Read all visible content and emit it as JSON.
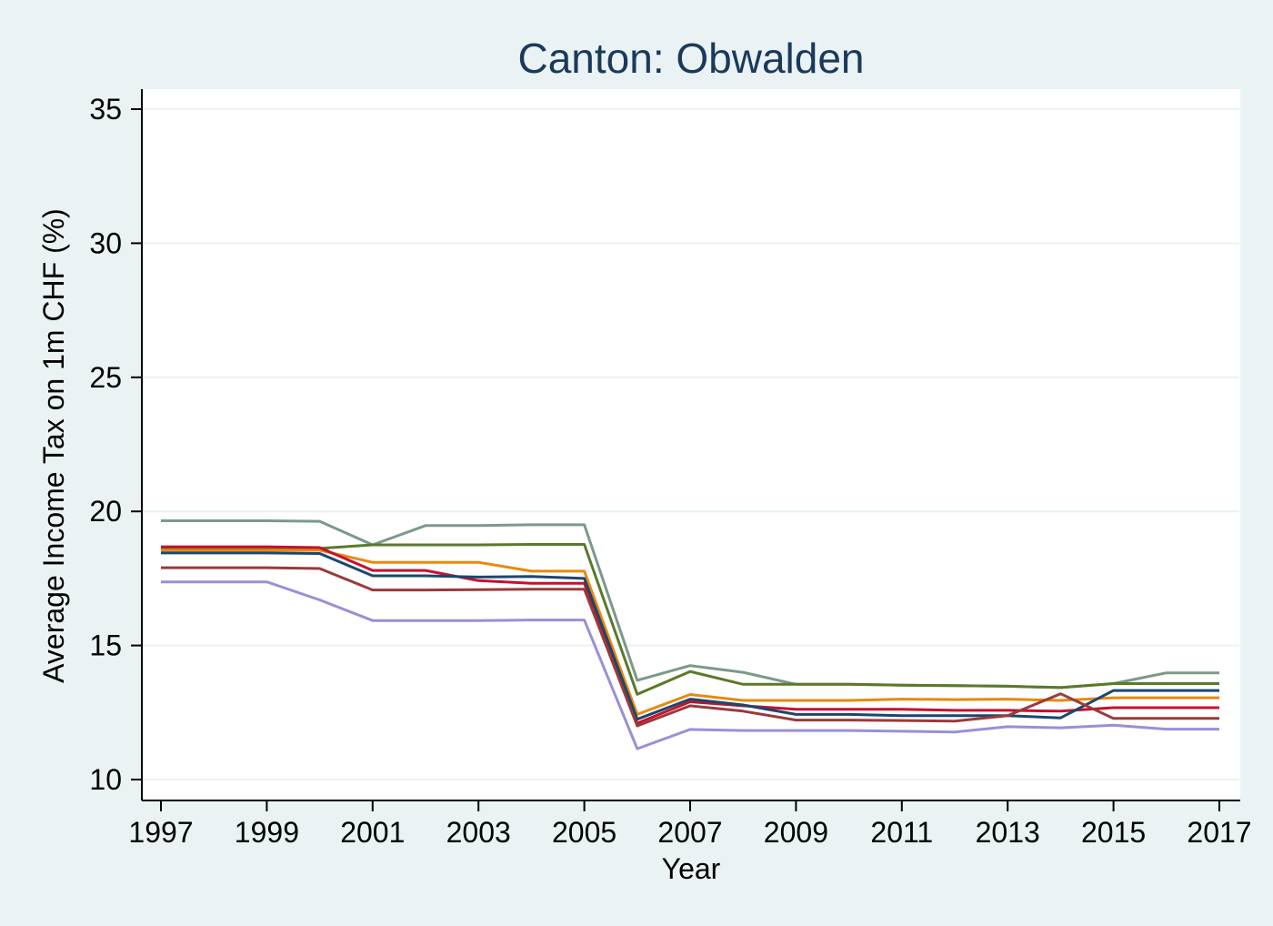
{
  "chart_data": {
    "type": "line",
    "title": "Canton: Obwalden",
    "xlabel": "Year",
    "ylabel": "Average Income Tax on 1m CHF (%)",
    "xlim": [
      1997,
      2017
    ],
    "ylim": [
      10,
      35
    ],
    "xticks": [
      1997,
      1999,
      2001,
      2003,
      2005,
      2007,
      2009,
      2011,
      2013,
      2015,
      2017
    ],
    "yticks": [
      10,
      15,
      20,
      25,
      30,
      35
    ],
    "grid": true,
    "x": [
      1997,
      1998,
      1999,
      2000,
      2001,
      2002,
      2003,
      2004,
      2005,
      2006,
      2007,
      2008,
      2009,
      2010,
      2011,
      2012,
      2013,
      2014,
      2015,
      2016,
      2017
    ],
    "series": [
      {
        "color": "#7a9a8a",
        "values": [
          19.65,
          19.65,
          19.65,
          19.63,
          18.75,
          19.47,
          19.47,
          19.5,
          19.5,
          13.7,
          14.25,
          14.0,
          13.55,
          13.55,
          13.52,
          13.5,
          13.48,
          13.43,
          13.58,
          13.98,
          13.98
        ]
      },
      {
        "color": "#5a7a2a",
        "values": [
          18.65,
          18.65,
          18.65,
          18.62,
          18.75,
          18.75,
          18.75,
          18.77,
          18.77,
          13.18,
          14.03,
          13.55,
          13.55,
          13.55,
          13.52,
          13.5,
          13.48,
          13.43,
          13.58,
          13.58,
          13.58
        ]
      },
      {
        "color": "#e8890c",
        "values": [
          18.55,
          18.55,
          18.55,
          18.55,
          18.1,
          18.1,
          18.1,
          17.77,
          17.77,
          12.43,
          13.17,
          12.95,
          12.95,
          12.95,
          13.0,
          12.98,
          13.0,
          12.95,
          13.05,
          13.05,
          13.05
        ]
      },
      {
        "color": "#c8102e",
        "values": [
          18.68,
          18.68,
          18.68,
          18.65,
          17.8,
          17.8,
          17.42,
          17.32,
          17.32,
          12.1,
          12.9,
          12.75,
          12.62,
          12.62,
          12.62,
          12.58,
          12.58,
          12.55,
          12.68,
          12.68,
          12.68
        ]
      },
      {
        "color": "#1a476f",
        "values": [
          18.45,
          18.45,
          18.45,
          18.43,
          17.6,
          17.6,
          17.55,
          17.57,
          17.5,
          12.25,
          13.0,
          12.78,
          12.43,
          12.43,
          12.38,
          12.38,
          12.38,
          12.3,
          13.32,
          13.32,
          13.32
        ]
      },
      {
        "color": "#9b3a3a",
        "values": [
          17.9,
          17.9,
          17.9,
          17.87,
          17.07,
          17.07,
          17.08,
          17.1,
          17.1,
          12.0,
          12.75,
          12.55,
          12.22,
          12.22,
          12.2,
          12.18,
          12.38,
          13.2,
          12.28,
          12.28,
          12.28
        ]
      },
      {
        "color": "#9a8fd8",
        "values": [
          17.37,
          17.37,
          17.37,
          16.7,
          15.93,
          15.93,
          15.93,
          15.95,
          15.95,
          11.15,
          11.87,
          11.83,
          11.83,
          11.83,
          11.8,
          11.77,
          11.97,
          11.93,
          12.03,
          11.88,
          11.88
        ]
      }
    ]
  }
}
